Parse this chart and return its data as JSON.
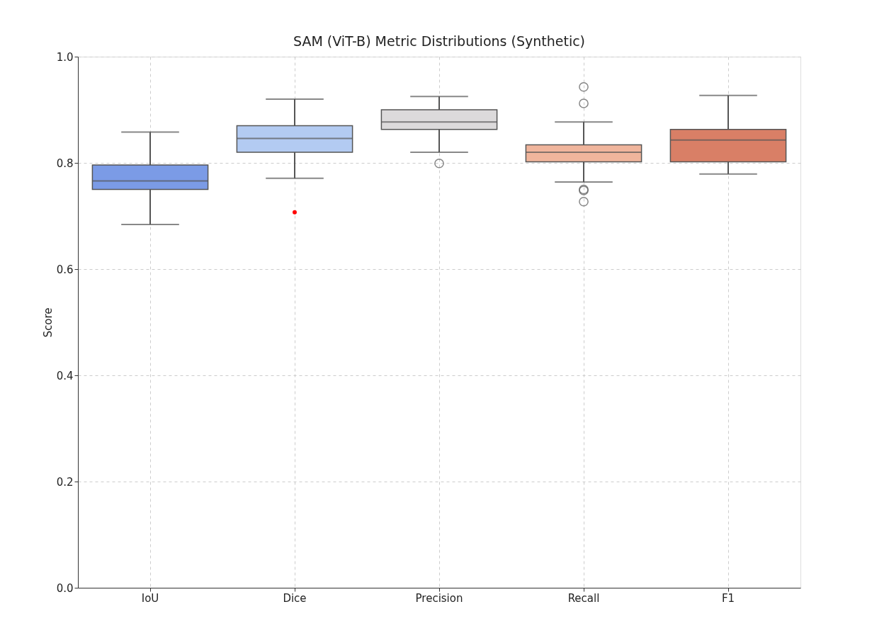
{
  "chart_data": {
    "type": "box",
    "title": "SAM (ViT-B) Metric Distributions (Synthetic)",
    "ylabel": "Score",
    "categories": [
      "IoU",
      "Dice",
      "Precision",
      "Recall",
      "F1"
    ],
    "colors": [
      "#7b9be6",
      "#b3cbf2",
      "#dcdadb",
      "#f0b59c",
      "#d97f66"
    ],
    "boxes": [
      {
        "low": 0.684,
        "q1": 0.75,
        "median": 0.766,
        "q3": 0.796,
        "high": 0.858
      },
      {
        "low": 0.771,
        "q1": 0.82,
        "median": 0.846,
        "q3": 0.87,
        "high": 0.92
      },
      {
        "low": 0.82,
        "q1": 0.863,
        "median": 0.877,
        "q3": 0.9,
        "high": 0.925,
        "outliers": [
          0.799
        ]
      },
      {
        "low": 0.764,
        "q1": 0.802,
        "median": 0.82,
        "q3": 0.834,
        "high": 0.877,
        "outliers": [
          0.943,
          0.912,
          0.75,
          0.748,
          0.727
        ]
      },
      {
        "low": 0.779,
        "q1": 0.802,
        "median": 0.843,
        "q3": 0.863,
        "high": 0.927
      }
    ],
    "series": [
      {
        "type": "scatter",
        "x": [
          "Dice"
        ],
        "values": [
          0.707
        ],
        "color": "#ff0000"
      }
    ],
    "ylim": [
      0,
      1
    ],
    "yticks": [
      {
        "value": 0,
        "label": "0.0"
      },
      0.2,
      0.4,
      0.6,
      0.8,
      {
        "value": 1,
        "label": "1.0"
      }
    ],
    "grid": true
  }
}
